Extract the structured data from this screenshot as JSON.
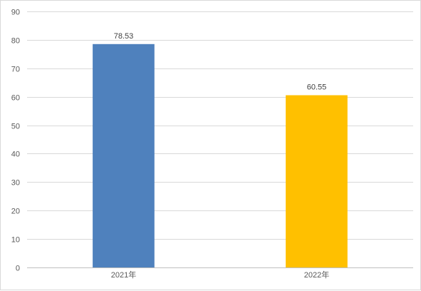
{
  "chart_data": {
    "type": "bar",
    "title": "",
    "xlabel": "",
    "ylabel": "",
    "categories": [
      "2021年",
      "2022年"
    ],
    "values": [
      78.53,
      60.55
    ],
    "data_labels": [
      "78.53",
      "60.55"
    ],
    "colors": [
      "#4f81bd",
      "#ffc000"
    ],
    "ylim": [
      0,
      90
    ],
    "yticks": [
      0,
      10,
      20,
      30,
      40,
      50,
      60,
      70,
      80,
      90
    ],
    "grid": true,
    "legend": "none"
  }
}
